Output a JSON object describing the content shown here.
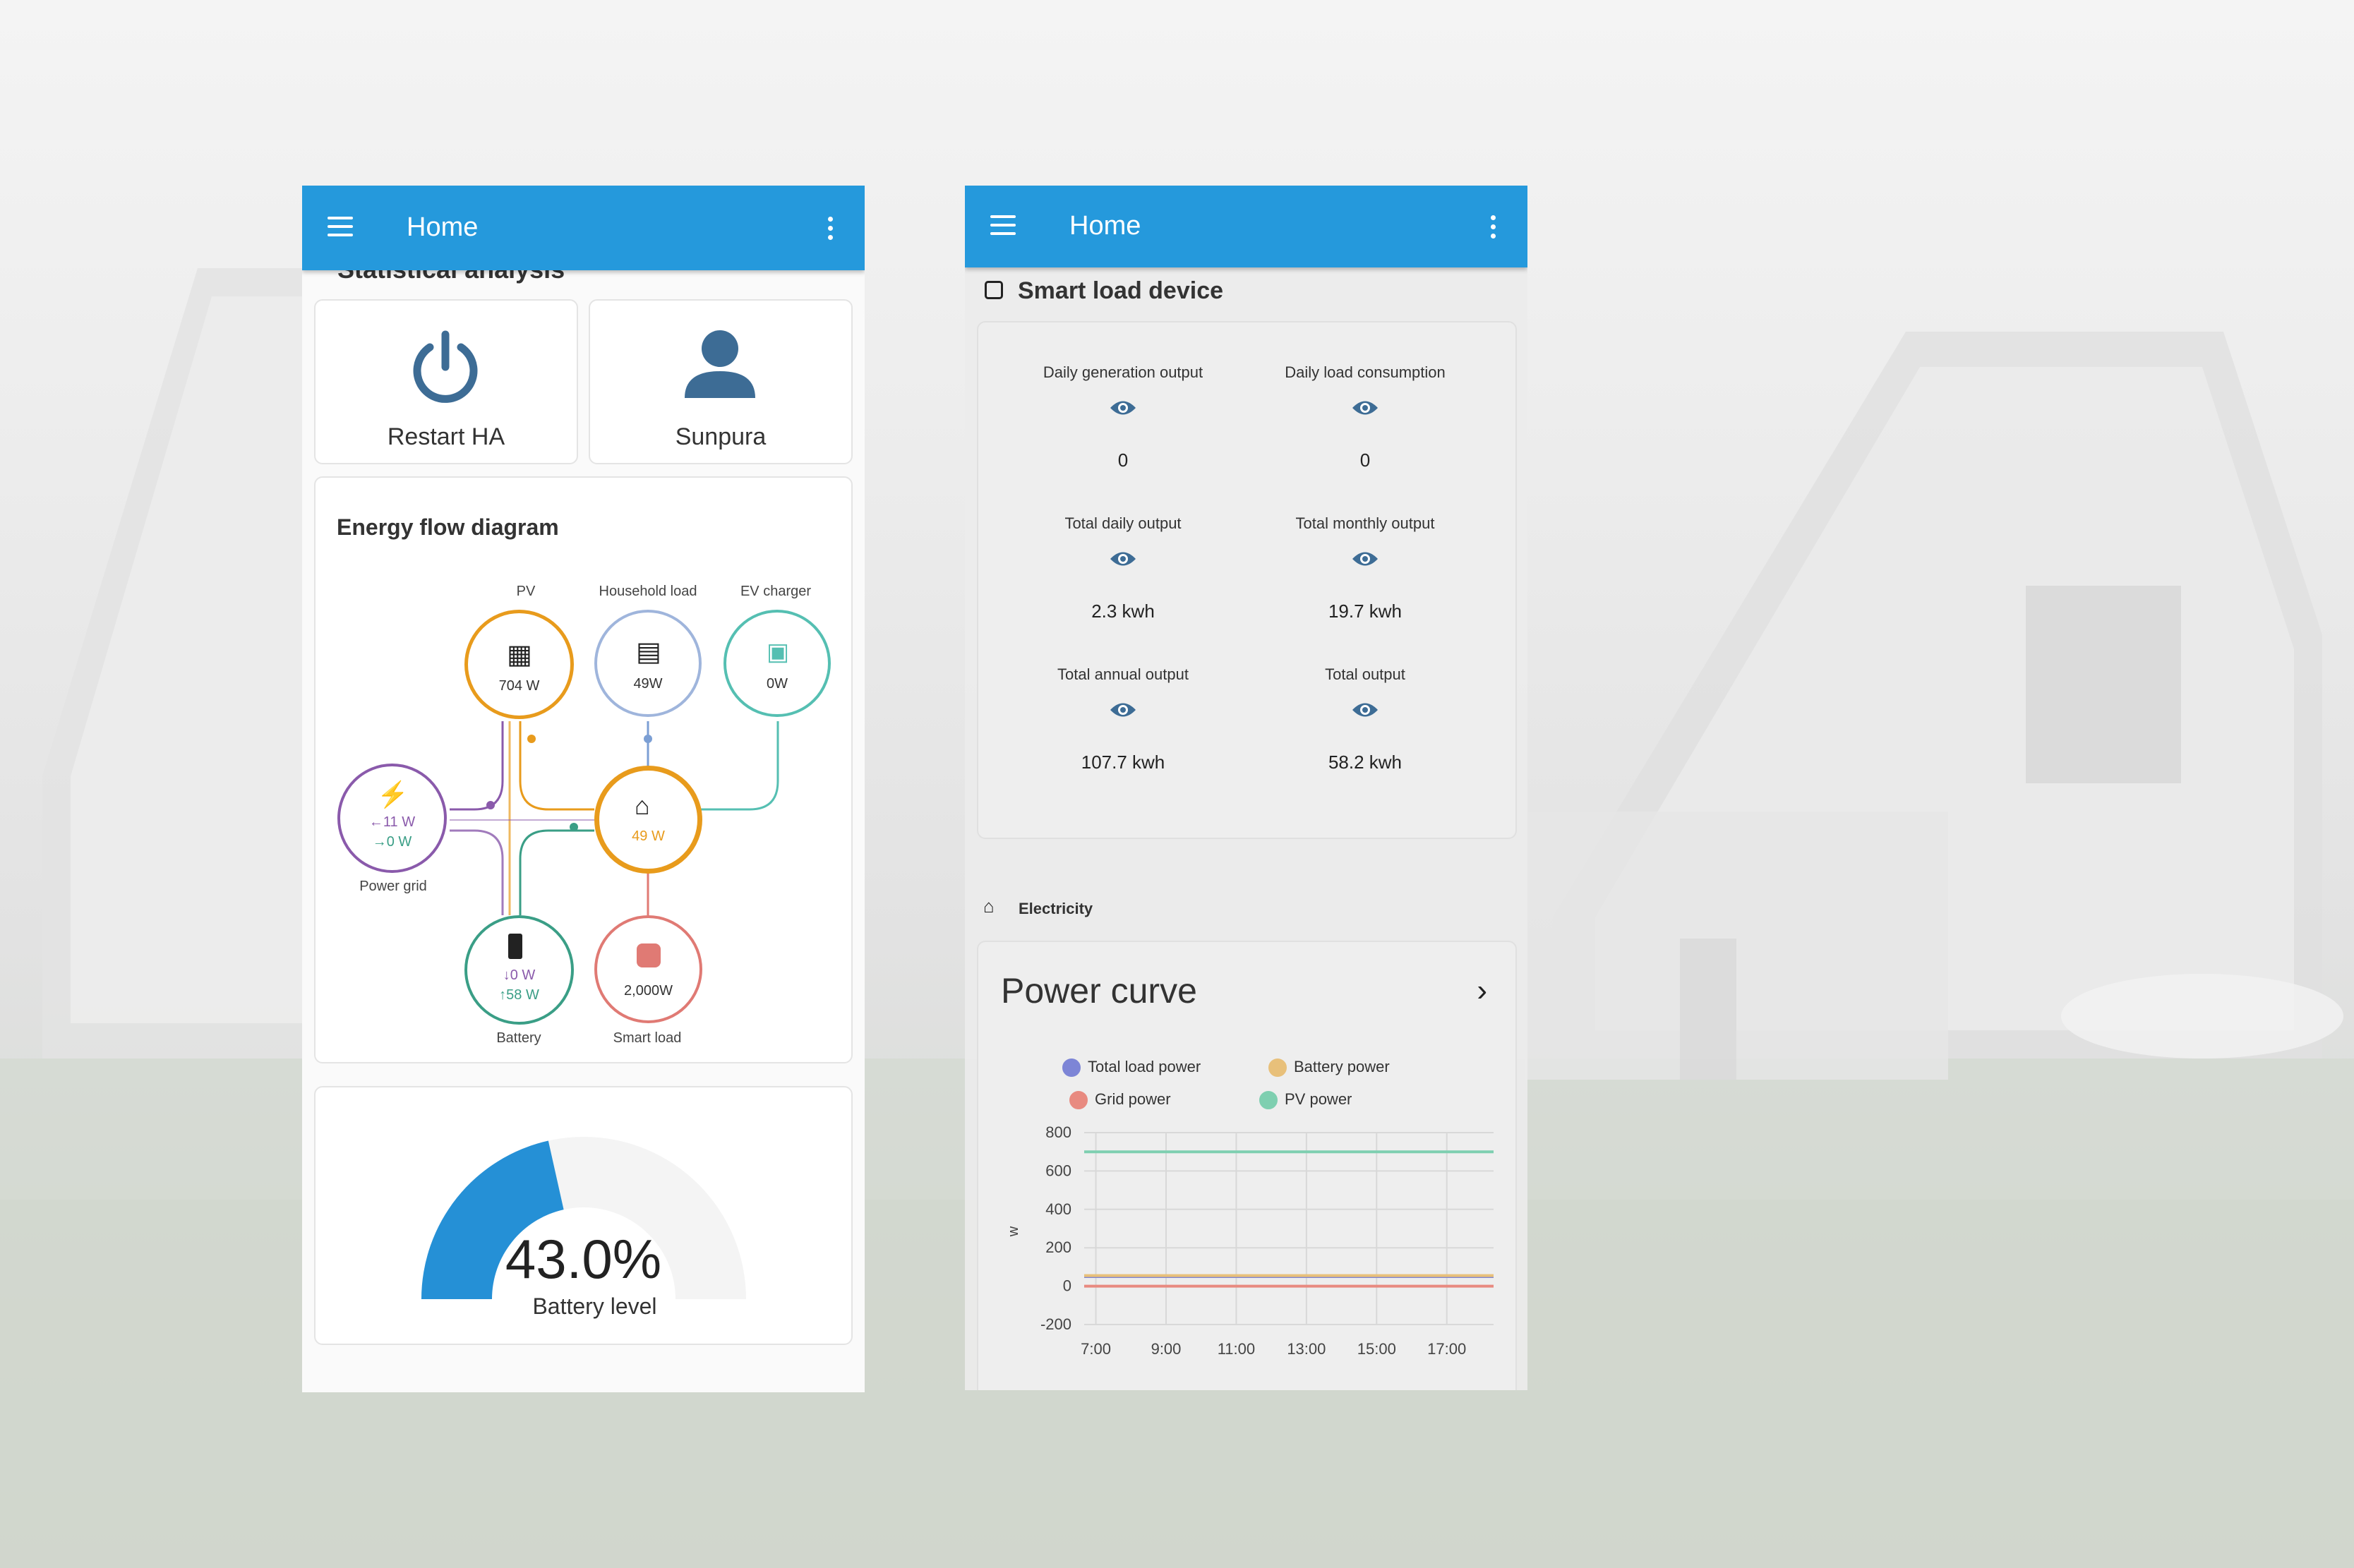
{
  "left": {
    "appbar": {
      "title": "Home"
    },
    "cut_heading": "Statistical analysis",
    "buttons": {
      "restart": "Restart HA",
      "user": "Sunpura"
    },
    "energy_flow": {
      "title": "Energy flow diagram",
      "nodes": {
        "pv": {
          "label": "PV",
          "value": "704 W"
        },
        "household": {
          "label": "Household load",
          "value": "49W"
        },
        "ev": {
          "label": "EV charger",
          "value": "0W"
        },
        "home": {
          "value": "49 W"
        },
        "grid": {
          "label": "Power grid",
          "in": "←11 W",
          "out": "→0 W"
        },
        "battery": {
          "label": "Battery",
          "down": "↓0 W",
          "up": "↑58 W"
        },
        "smart": {
          "label": "Smart load",
          "value": "2,000W"
        }
      }
    },
    "battery": {
      "percent_text": "43.0%",
      "label": "Battery level",
      "level": 0.43
    }
  },
  "right": {
    "appbar": {
      "title": "Home"
    },
    "smart_load": {
      "title": "Smart load device",
      "stats": [
        {
          "label": "Daily generation output",
          "value": "0"
        },
        {
          "label": "Daily load consumption",
          "value": "0"
        },
        {
          "label": "Total daily output",
          "value": "2.3 kwh"
        },
        {
          "label": "Total monthly output",
          "value": "19.7 kwh"
        },
        {
          "label": "Total annual output",
          "value": "107.7 kwh"
        },
        {
          "label": "Total output",
          "value": "58.2 kwh"
        }
      ]
    },
    "electricity": {
      "title": "Electricity"
    },
    "power_curve": {
      "title": "Power curve"
    }
  },
  "colors": {
    "accent": "#2599dc",
    "pv": "#e89b1c",
    "household": "#7c9fd4",
    "ev": "#55bfb2",
    "grid": "#8a5aab",
    "battery": "#3a9e86",
    "smart": "#e07a74"
  },
  "chart_data": {
    "type": "line",
    "title": "Power curve",
    "xlabel": "",
    "ylabel": "w",
    "x_ticks": [
      "7:00",
      "9:00",
      "11:00",
      "13:00",
      "15:00",
      "17:00"
    ],
    "y_ticks": [
      "800",
      "600",
      "400",
      "200",
      "0",
      "-200"
    ],
    "ylim": [
      -200,
      800
    ],
    "legend": "top",
    "series": [
      {
        "name": "Total load power",
        "color": "#7d85d6",
        "x": [
          "6:40",
          "18:20"
        ],
        "y": [
          50,
          50
        ]
      },
      {
        "name": "Battery power",
        "color": "#e8c07a",
        "x": [
          "6:40",
          "18:20"
        ],
        "y": [
          55,
          55
        ]
      },
      {
        "name": "Grid power",
        "color": "#e88a80",
        "x": [
          "6:40",
          "18:20"
        ],
        "y": [
          0,
          0
        ]
      },
      {
        "name": "PV power",
        "color": "#7ecfb0",
        "x": [
          "6:40",
          "18:20"
        ],
        "y": [
          700,
          700
        ]
      }
    ]
  }
}
